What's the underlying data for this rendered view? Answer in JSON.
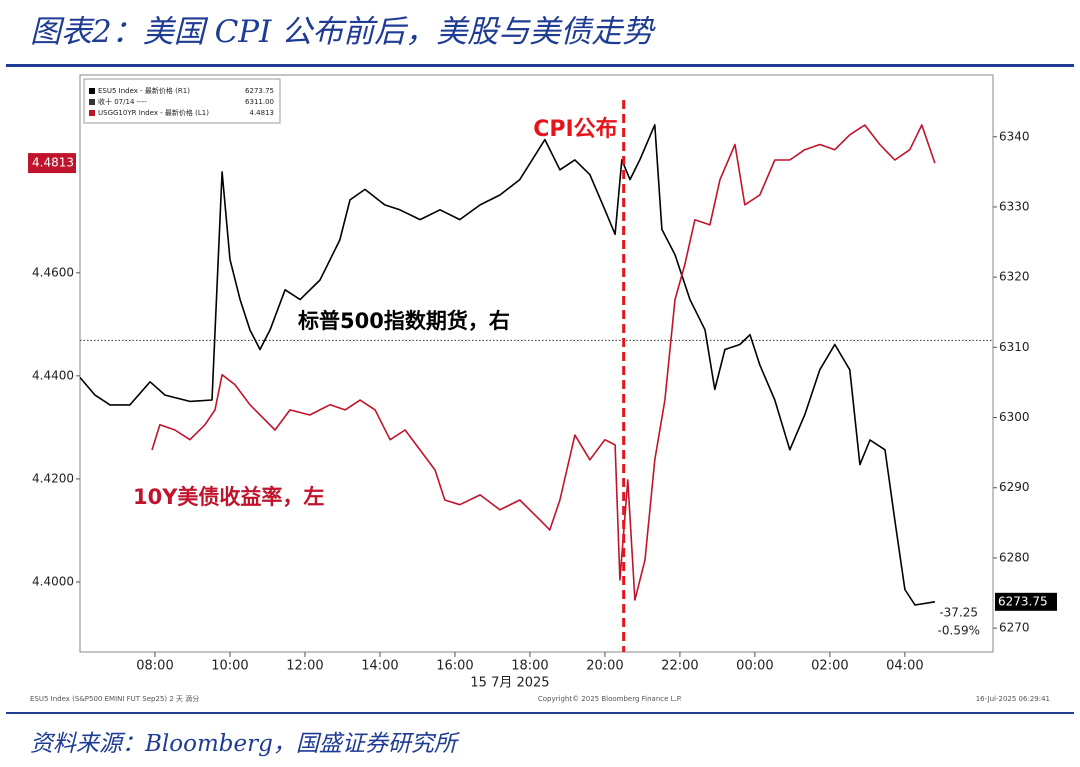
{
  "header": {
    "title": "图表2：美国 CPI 公布前后，美股与美债走势"
  },
  "footer": {
    "source": "资料来源：Bloomberg，国盛证券研究所"
  },
  "chart_data": {
    "type": "line",
    "xlim": [
      6,
      30.35
    ],
    "xticks": [
      {
        "value": 8,
        "label": "08:00"
      },
      {
        "value": 10,
        "label": "10:00"
      },
      {
        "value": 12,
        "label": "12:00"
      },
      {
        "value": 14,
        "label": "14:00"
      },
      {
        "value": 16,
        "label": "16:00"
      },
      {
        "value": 18,
        "label": "18:00"
      },
      {
        "value": 20,
        "label": "20:00"
      },
      {
        "value": 22,
        "label": "22:00"
      },
      {
        "value": 24,
        "label": "00:00"
      },
      {
        "value": 26,
        "label": "02:00"
      },
      {
        "value": 28,
        "label": "04:00"
      }
    ],
    "x_date_label": "15 7月 2025",
    "ylim": [
      4.3864,
      4.4984
    ],
    "yticks": [
      {
        "value": 4.4,
        "label": "4.4000"
      },
      {
        "value": 4.42,
        "label": "4.4200"
      },
      {
        "value": 4.44,
        "label": "4.4400"
      },
      {
        "value": 4.46,
        "label": "4.4600"
      }
    ],
    "y2lim": [
      6266.6,
      6348.8
    ],
    "y2ticks": [
      6270,
      6280,
      6290,
      6300,
      6310,
      6320,
      6330,
      6340
    ],
    "series": [
      {
        "name": "ESU5 Index - 最新价格 (R1)",
        "color": "#000000",
        "axis": "y2",
        "last_label": "6273.75",
        "change_labels": [
          "-37.25",
          "-0.59%"
        ],
        "x": [
          6.0,
          6.4,
          6.8,
          7.33,
          7.87,
          8.27,
          8.93,
          9.52,
          9.79,
          10.0,
          10.27,
          10.53,
          10.8,
          11.07,
          11.47,
          11.87,
          12.4,
          12.93,
          13.2,
          13.6,
          14.13,
          14.53,
          15.07,
          15.6,
          16.13,
          16.67,
          17.2,
          17.73,
          18.4,
          18.8,
          19.2,
          19.6,
          20.0,
          20.27,
          20.45,
          20.67,
          20.93,
          21.33,
          21.52,
          21.87,
          22.27,
          22.67,
          22.93,
          23.2,
          23.6,
          23.87,
          24.13,
          24.53,
          24.93,
          25.33,
          25.73,
          26.13,
          26.53,
          26.8,
          27.07,
          27.47,
          27.73,
          28.0,
          28.27,
          28.8
        ],
        "values": [
          6305.7,
          6303.2,
          6301.8,
          6301.8,
          6305.1,
          6303.2,
          6302.3,
          6302.5,
          6335.0,
          6322.5,
          6316.8,
          6312.5,
          6309.7,
          6312.5,
          6318.2,
          6316.8,
          6319.6,
          6325.3,
          6331.0,
          6332.5,
          6330.3,
          6329.6,
          6328.2,
          6329.6,
          6328.2,
          6330.3,
          6331.7,
          6333.9,
          6339.6,
          6335.3,
          6336.7,
          6334.6,
          6329.6,
          6326.1,
          6336.7,
          6333.9,
          6336.7,
          6341.7,
          6326.8,
          6323.2,
          6316.8,
          6312.5,
          6304.0,
          6309.7,
          6310.4,
          6311.8,
          6307.5,
          6302.5,
          6295.4,
          6300.4,
          6306.8,
          6310.4,
          6306.8,
          6293.3,
          6296.8,
          6295.4,
          6285.4,
          6275.5,
          6273.3,
          6273.75
        ]
      },
      {
        "name": "USGG10YR Index - 最新价格 (L1)",
        "color": "#c0142c",
        "last_label": "4.4813",
        "x": [
          7.92,
          8.13,
          8.53,
          8.93,
          9.33,
          9.6,
          9.79,
          10.13,
          10.53,
          10.93,
          11.2,
          11.6,
          12.13,
          12.67,
          13.07,
          13.47,
          13.87,
          14.27,
          14.67,
          15.07,
          15.47,
          15.73,
          16.13,
          16.67,
          17.2,
          17.73,
          18.27,
          18.53,
          18.8,
          19.2,
          19.6,
          20.0,
          20.27,
          20.4,
          20.61,
          20.8,
          21.07,
          21.33,
          21.6,
          21.87,
          22.13,
          22.4,
          22.8,
          23.07,
          23.47,
          23.73,
          24.13,
          24.53,
          24.93,
          25.33,
          25.73,
          26.13,
          26.53,
          26.93,
          27.33,
          27.73,
          28.13,
          28.45,
          28.8
        ],
        "values": [
          4.4256,
          4.4305,
          4.4295,
          4.4276,
          4.4305,
          4.4334,
          4.4402,
          4.4383,
          4.4344,
          4.4315,
          4.4295,
          4.4334,
          4.4324,
          4.4344,
          4.4334,
          4.4353,
          4.4334,
          4.4276,
          4.4295,
          4.4256,
          4.4217,
          4.4159,
          4.415,
          4.4169,
          4.414,
          4.4159,
          4.412,
          4.4101,
          4.4159,
          4.4285,
          4.4237,
          4.4276,
          4.4266,
          4.4004,
          4.4198,
          4.3965,
          4.4043,
          4.4237,
          4.4353,
          4.4548,
          4.4616,
          4.4703,
          4.4693,
          4.4781,
          4.4849,
          4.4732,
          4.4751,
          4.4819,
          4.4819,
          4.4839,
          4.4849,
          4.4839,
          4.4868,
          4.4887,
          4.4849,
          4.4819,
          4.4839,
          4.4887,
          4.4813
        ]
      }
    ],
    "reference_line": {
      "name": "收十 07/14 ----",
      "value": 6311,
      "value_label": "6311.00",
      "axis": "y2"
    },
    "event": {
      "text": "CPI公布",
      "x": 20.5,
      "color": "#e8141c"
    },
    "annotations": [
      "标普500指数期货，右",
      "10Y美债收益率，左"
    ],
    "copyright": "Copyright© 2025 Bloomberg Finance L.P.",
    "footnote_left": "ESU5 Index (S&P500 EMINI FUT Sep25) 2 天 滴分",
    "footnote_right": "16-Jul-2025 06:29:41"
  }
}
